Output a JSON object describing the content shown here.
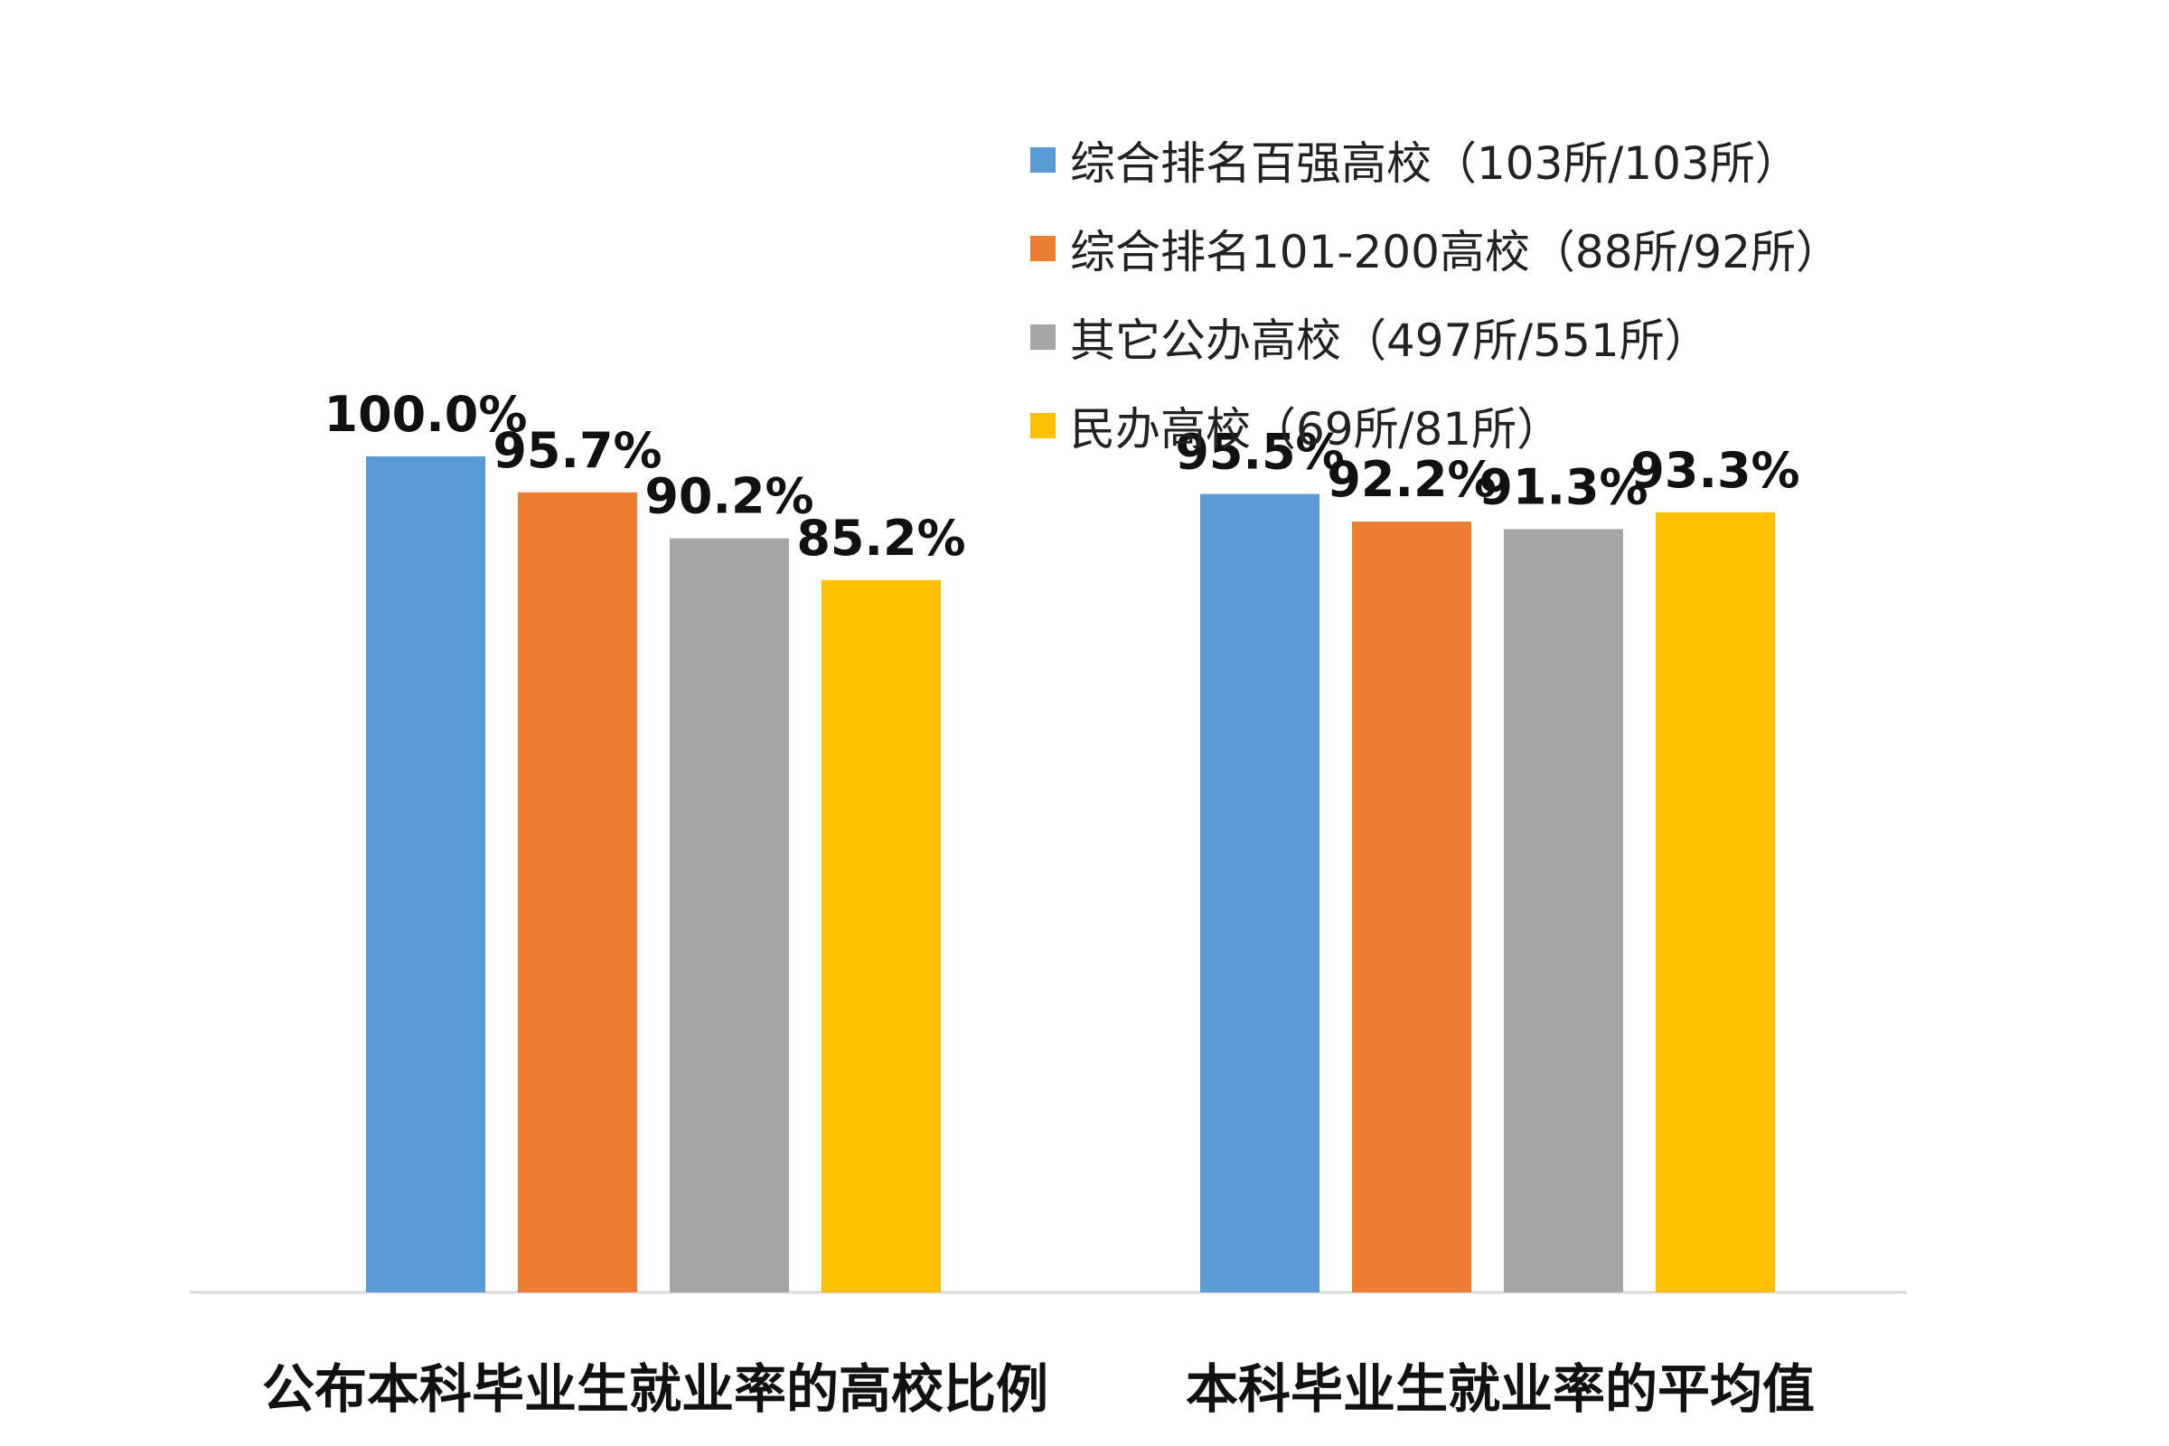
{
  "chart_data": {
    "type": "bar",
    "categories": [
      "公布本科毕业生就业率的高校比例",
      "本科毕业生就业率的平均值"
    ],
    "series": [
      {
        "name": "综合排名百强高校（103所/103所）",
        "color": "#5B9BD5",
        "values": [
          100.0,
          95.5
        ],
        "labels": [
          "100.0%",
          "95.5%"
        ]
      },
      {
        "name": "综合排名101-200高校（88所/92所）",
        "color": "#ED7D31",
        "values": [
          95.7,
          92.2
        ],
        "labels": [
          "95.7%",
          "92.2%"
        ]
      },
      {
        "name": "其它公办高校（497所/551所）",
        "color": "#A5A5A5",
        "values": [
          90.2,
          91.3
        ],
        "labels": [
          "90.2%",
          "91.3%"
        ]
      },
      {
        "name": "民办高校（69所/81所）",
        "color": "#FFC000",
        "values": [
          85.2,
          93.3
        ],
        "labels": [
          "85.2%",
          "93.3%"
        ]
      }
    ],
    "legend_position": "top-right",
    "grid": false
  }
}
